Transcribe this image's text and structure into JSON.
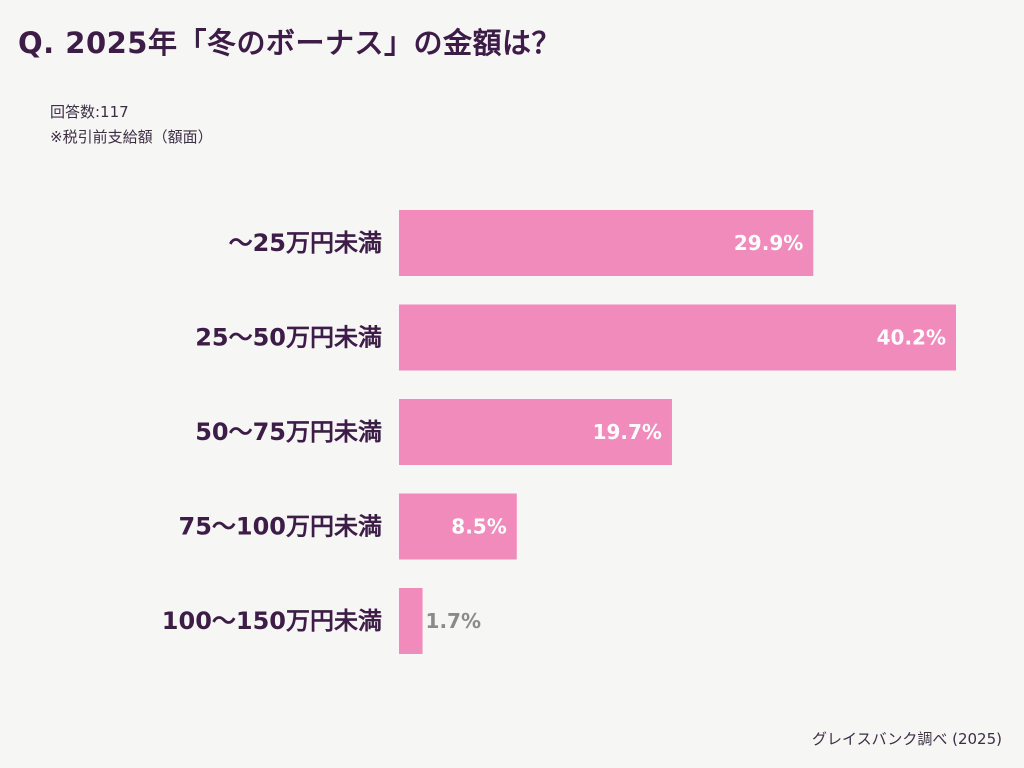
{
  "header": {
    "title": "Q. 2025年「冬のボーナス」の金額は？",
    "respondents": "回答数:117",
    "note": "※税引前支給額（額面）"
  },
  "footer": {
    "source": "グレイスバンク調べ (2025)"
  },
  "colors": {
    "bar": "#f08bbb",
    "label_inside": "#ffffff",
    "label_outside": "#8a8a8a",
    "category_text": "#3d1c48"
  },
  "chart_data": {
    "type": "bar",
    "orientation": "horizontal",
    "title": "Q. 2025年「冬のボーナス」の金額は？",
    "categories": [
      "〜25万円未満",
      "25〜50万円未満",
      "50〜75万円未満",
      "75〜100万円未満",
      "100〜150万円未満"
    ],
    "values": [
      29.9,
      40.2,
      19.7,
      8.5,
      1.7
    ],
    "value_labels": [
      "29.9%",
      "40.2%",
      "19.7%",
      "8.5%",
      "1.7%"
    ],
    "unit": "%",
    "xlim": [
      0,
      40.2
    ],
    "grid": false,
    "legend": "none"
  }
}
